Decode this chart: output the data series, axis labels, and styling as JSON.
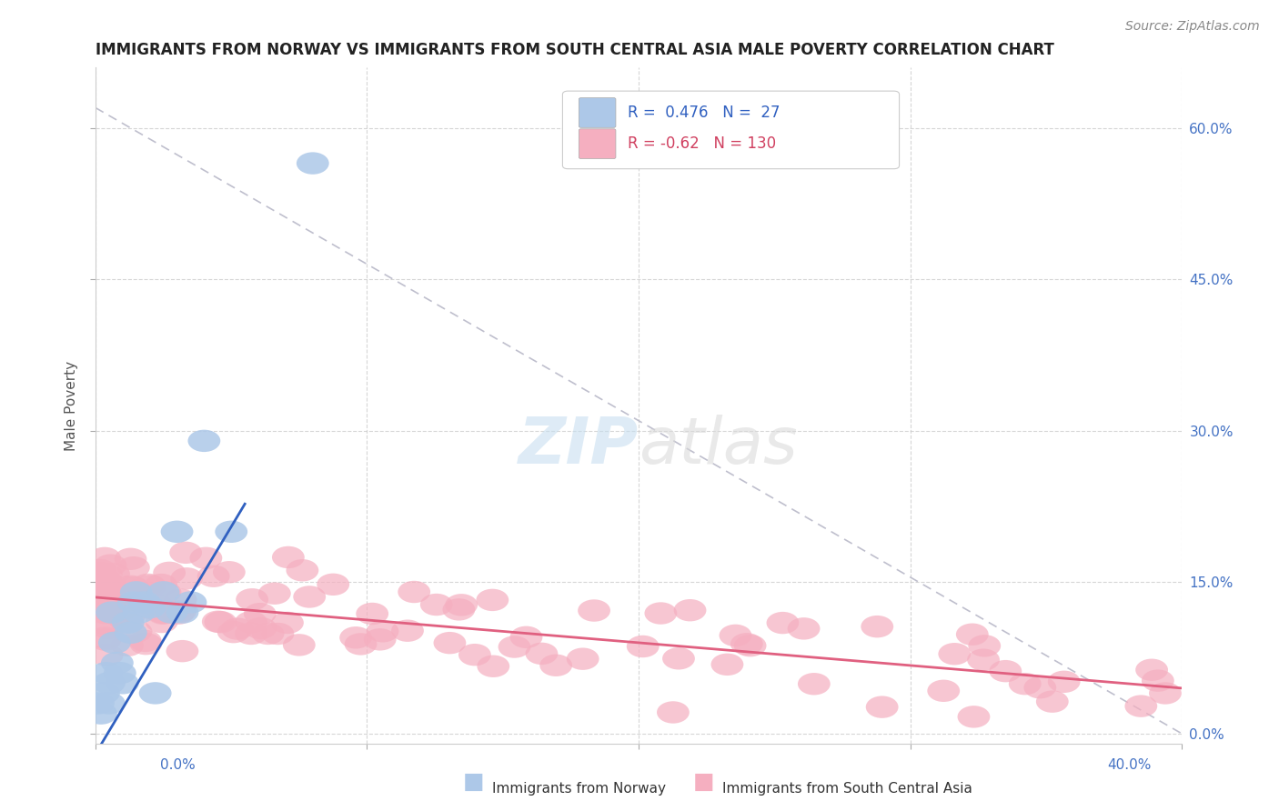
{
  "title": "IMMIGRANTS FROM NORWAY VS IMMIGRANTS FROM SOUTH CENTRAL ASIA MALE POVERTY CORRELATION CHART",
  "source_text": "Source: ZipAtlas.com",
  "ylabel": "Male Poverty",
  "norway_R": 0.476,
  "norway_N": 27,
  "sca_R": -0.62,
  "sca_N": 130,
  "norway_color": "#adc8e8",
  "sca_color": "#f5afc0",
  "norway_line_color": "#3060c0",
  "sca_line_color": "#e06080",
  "background_color": "#ffffff",
  "xlim": [
    0.0,
    0.4
  ],
  "ylim": [
    -0.01,
    0.66
  ],
  "y_ticks": [
    0.0,
    0.15,
    0.3,
    0.45,
    0.6
  ],
  "y_tick_labels": [
    "0.0%",
    "15.0%",
    "30.0%",
    "45.0%",
    "60.0%"
  ],
  "x_ticks": [
    0.0,
    0.1,
    0.2,
    0.3,
    0.4
  ],
  "norway_x": [
    0.001,
    0.002,
    0.003,
    0.004,
    0.005,
    0.005,
    0.006,
    0.007,
    0.008,
    0.009,
    0.01,
    0.012,
    0.013,
    0.014,
    0.015,
    0.016,
    0.018,
    0.02,
    0.022,
    0.025,
    0.028,
    0.03,
    0.032,
    0.035,
    0.04,
    0.05,
    0.08
  ],
  "norway_y": [
    0.03,
    0.02,
    0.04,
    0.06,
    0.05,
    0.03,
    0.12,
    0.09,
    0.07,
    0.06,
    0.05,
    0.11,
    0.1,
    0.13,
    0.14,
    0.12,
    0.13,
    0.125,
    0.04,
    0.14,
    0.12,
    0.2,
    0.12,
    0.13,
    0.29,
    0.2,
    0.565
  ],
  "norway_line_x": [
    0.0,
    0.055
  ],
  "norway_line_y_intercept": -0.02,
  "norway_line_slope": 4.5,
  "sca_line_x": [
    0.0,
    0.4
  ],
  "sca_line_y_start": 0.135,
  "sca_line_y_end": 0.045,
  "diag_line_x": [
    0.0,
    0.4
  ],
  "diag_line_y": [
    0.62,
    0.0
  ]
}
